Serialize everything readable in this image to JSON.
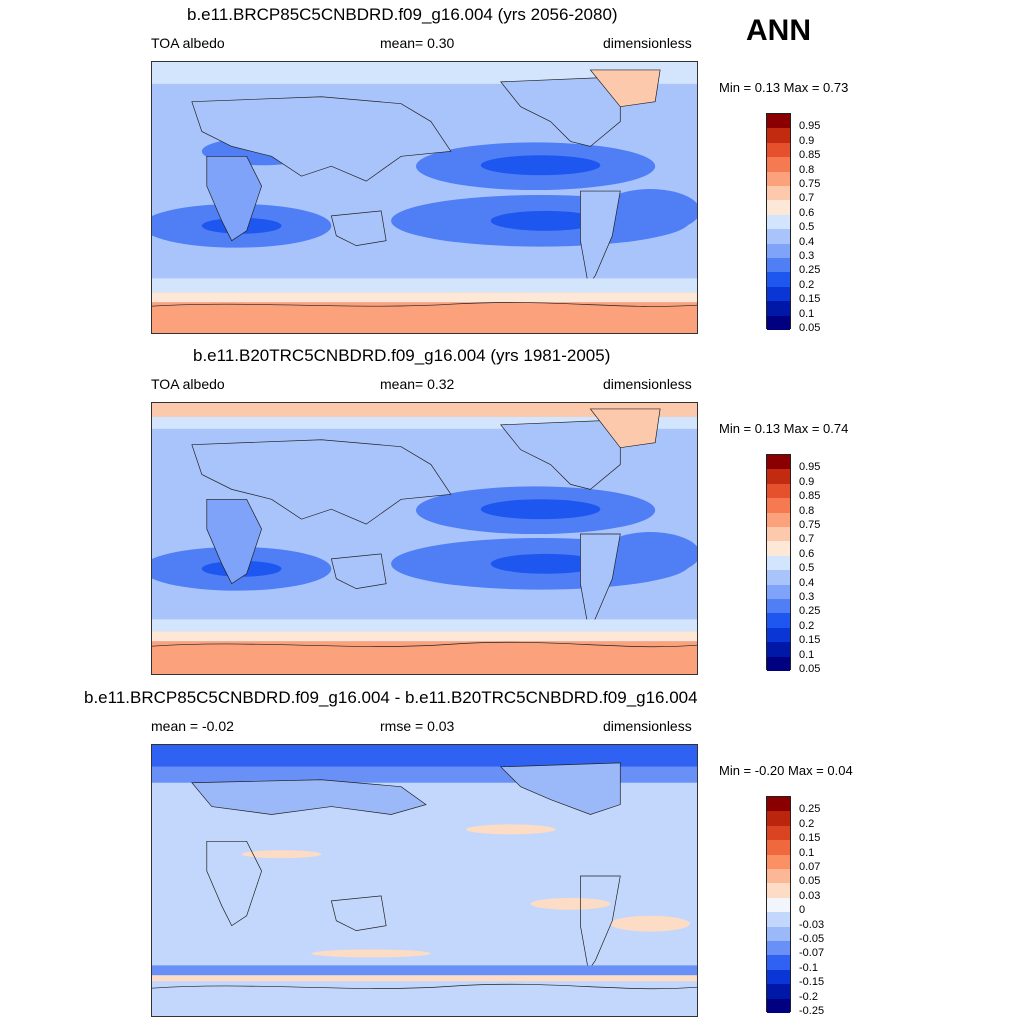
{
  "season": "ANN",
  "colors_main": [
    "#000080",
    "#0018a8",
    "#0a36d6",
    "#1e56f0",
    "#4f7ef5",
    "#7fa3f8",
    "#a9c3fb",
    "#d3e5fd",
    "#fde8d7",
    "#fcc9ac",
    "#fba27d",
    "#f57a51",
    "#e4512c",
    "#c22b10",
    "#8a0000"
  ],
  "colors_diff": [
    "#000080",
    "#0018a8",
    "#0a36d6",
    "#2f62f2",
    "#6990f6",
    "#9bb9f9",
    "#c2d7fb",
    "#f2f6fc",
    "#fcdcc5",
    "#fcb896",
    "#fa9064",
    "#f0683d",
    "#da4420",
    "#bb250d",
    "#8a0000"
  ],
  "panels": [
    {
      "title": "b.e11.BRCP85C5CNBDRD.f09_g16.004 (yrs 2056-2080)",
      "left": "TOA albedo",
      "center": "mean=   0.30",
      "right": "dimensionless",
      "minmax": "Min =   0.13 Max =   0.73",
      "ticks": [
        "0.95",
        "0.9",
        "0.85",
        "0.8",
        "0.75",
        "0.7",
        "0.6",
        "0.5",
        "0.4",
        "0.3",
        "0.25",
        "0.2",
        "0.15",
        "0.1",
        "0.05"
      ]
    },
    {
      "title": "b.e11.B20TRC5CNBDRD.f09_g16.004 (yrs 1981-2005)",
      "left": "TOA albedo",
      "center": "mean=   0.32",
      "right": "dimensionless",
      "minmax": "Min =   0.13 Max =   0.74",
      "ticks": [
        "0.95",
        "0.9",
        "0.85",
        "0.8",
        "0.75",
        "0.7",
        "0.6",
        "0.5",
        "0.4",
        "0.3",
        "0.25",
        "0.2",
        "0.15",
        "0.1",
        "0.05"
      ]
    },
    {
      "title": "b.e11.BRCP85C5CNBDRD.f09_g16.004 - b.e11.B20TRC5CNBDRD.f09_g16.004",
      "left": "mean =  -0.02",
      "center": "rmse =   0.03",
      "right": "dimensionless",
      "minmax": "Min =  -0.20 Max =   0.04",
      "ticks": [
        "0.25",
        "0.2",
        "0.15",
        "0.1",
        "0.07",
        "0.05",
        "0.03",
        "0",
        "-0.03",
        "-0.05",
        "-0.07",
        "-0.1",
        "-0.15",
        "-0.2",
        "-0.25"
      ]
    }
  ]
}
